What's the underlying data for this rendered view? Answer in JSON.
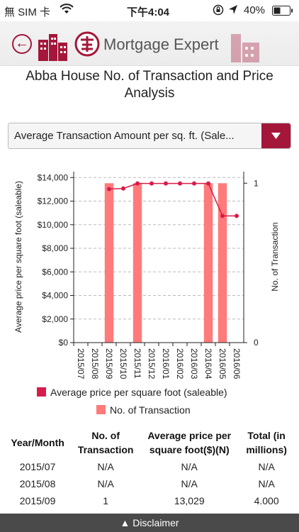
{
  "status_bar": {
    "carrier": "無 SIM 卡",
    "time": "下午4:04",
    "battery": "40%"
  },
  "header": {
    "app_title": "Mortgage Expert"
  },
  "page": {
    "title_line1": "Abba House No. of Transaction and Price",
    "title_line2": "Analysis"
  },
  "dropdown": {
    "selected": "Average Transaction Amount per sq. ft. (Sale..."
  },
  "chart_data": {
    "type": "bar+line",
    "categories": [
      "2015/07",
      "2015/08",
      "2015/09",
      "2015/10",
      "2015/11",
      "2015/12",
      "2016/01",
      "2016/02",
      "2016/03",
      "2016/04",
      "2016/05",
      "2016/06"
    ],
    "series": [
      {
        "name": "Average price per square foot (saleable)",
        "type": "line",
        "axis": "left",
        "color": "#d81c4a",
        "values": [
          null,
          null,
          13029,
          13070,
          13500,
          13500,
          13500,
          13500,
          13500,
          13500,
          10750,
          10750
        ]
      },
      {
        "name": "No. of Transaction",
        "type": "bar",
        "axis": "right",
        "color": "#ff7a7a",
        "values": [
          0,
          0,
          1,
          0,
          1,
          0,
          0,
          0,
          0,
          1,
          1,
          0
        ]
      }
    ],
    "ylabel": "Average price per square foot (saleable)",
    "y2label": "No. of Transaction",
    "yticks": [
      "$0",
      "$2,000",
      "$4,000",
      "$6,000",
      "$8,000",
      "$10,000",
      "$12,000",
      "$14,000"
    ],
    "ylim": [
      0,
      14500
    ],
    "y2ticks": [
      "0",
      "1"
    ],
    "y2lim": [
      0,
      1.0725
    ],
    "grid": true
  },
  "table": {
    "headers": [
      "Year/Month",
      "No. of Transaction",
      "Average price per square foot($)(N)",
      "Total (in millions)"
    ],
    "rows": [
      [
        "2015/07",
        "N/A",
        "N/A",
        "N/A"
      ],
      [
        "2015/08",
        "N/A",
        "N/A",
        "N/A"
      ],
      [
        "2015/09",
        "1",
        "13,029",
        "4.000"
      ]
    ]
  },
  "footer": {
    "disclaimer": "Disclaimer"
  }
}
